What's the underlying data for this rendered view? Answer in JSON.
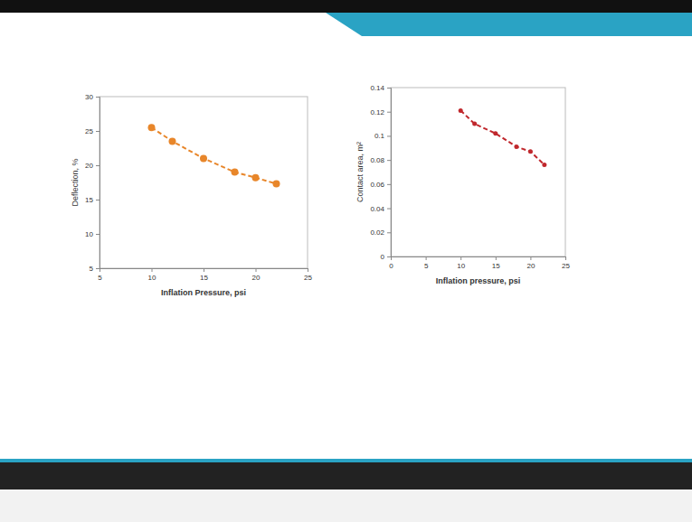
{
  "chart_data": [
    {
      "type": "line",
      "x_label": "Inflation Pressure, psi",
      "y_label": "Deflection, %",
      "x": [
        10,
        12,
        15,
        18,
        20,
        22
      ],
      "values": [
        25.5,
        23.5,
        21,
        19,
        18.2,
        17.3
      ],
      "color": "#e8862a",
      "marker": "circle",
      "line_style": "dashed",
      "xlim": [
        5,
        25
      ],
      "ylim": [
        5,
        30
      ],
      "xticks": [
        5,
        10,
        15,
        20,
        25
      ],
      "yticks": [
        5,
        10,
        15,
        20,
        25,
        30
      ],
      "grid": false
    },
    {
      "type": "line",
      "x_label": "Inflation pressure, psi",
      "y_label": "Contact area, m²",
      "x": [
        10,
        12,
        15,
        18,
        20,
        22
      ],
      "values": [
        0.121,
        0.11,
        0.102,
        0.091,
        0.087,
        0.076
      ],
      "color": "#c0282d",
      "marker": "circle",
      "line_style": "dashed",
      "xlim": [
        0,
        25
      ],
      "ylim": [
        0,
        0.14
      ],
      "xticks": [
        0,
        5,
        10,
        15,
        20,
        25
      ],
      "yticks": [
        0,
        0.02,
        0.04,
        0.06,
        0.08,
        0.1,
        0.12,
        0.14
      ],
      "grid": false
    }
  ]
}
